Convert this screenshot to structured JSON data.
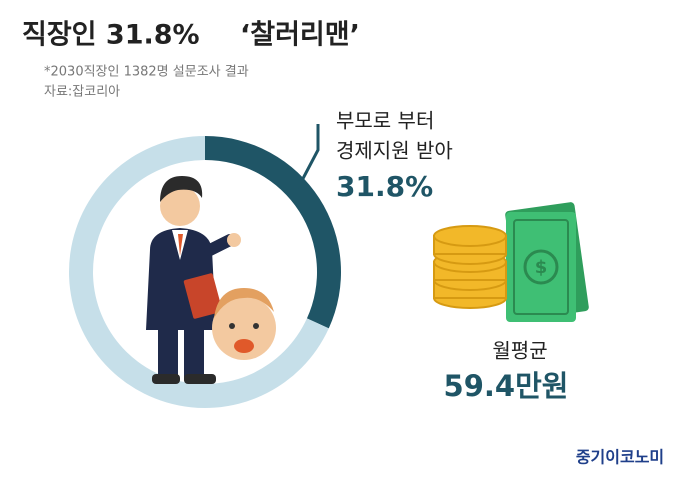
{
  "chart_data": {
    "type": "donut",
    "title": "직장인 31.8%",
    "title_highlight": "‘찰러리맨’",
    "note": "*2030직장인 1382명 설문조사 결과",
    "source": "자료:잡코리아",
    "label_lines": [
      "부모로 부터",
      "경제지원 받아"
    ],
    "values": [
      31.8,
      68.2
    ],
    "value_labels": [
      "31.8%",
      null
    ],
    "colors": [
      "#1f5566",
      "#c6dfe9"
    ],
    "average_label": "월평균",
    "average_value": "59.4만원",
    "brand": "중기이코노미"
  }
}
